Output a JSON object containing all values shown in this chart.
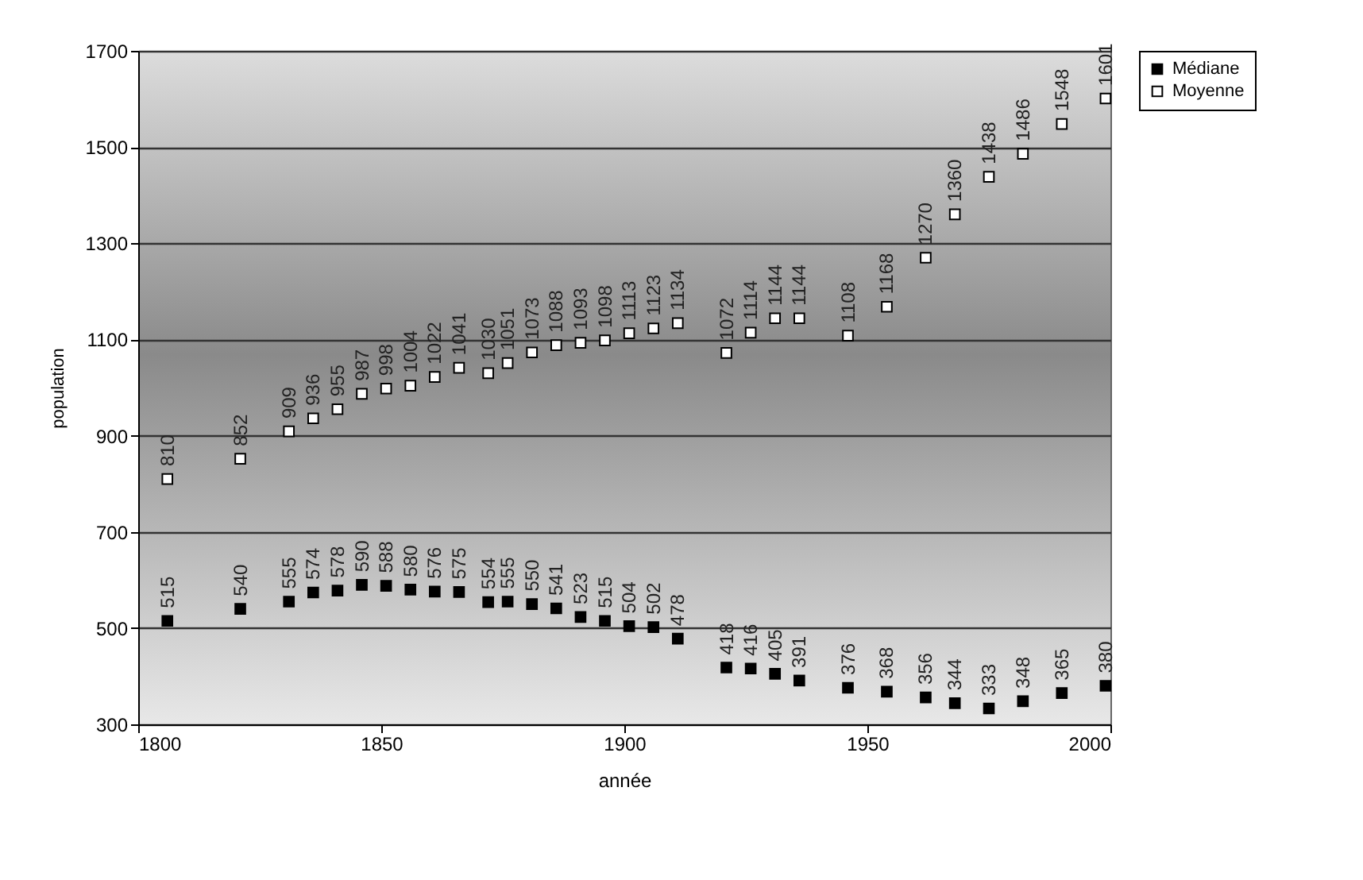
{
  "chart_data": {
    "type": "scatter",
    "xlabel": "année",
    "ylabel": "population",
    "x": [
      1806,
      1821,
      1831,
      1836,
      1841,
      1846,
      1851,
      1856,
      1861,
      1866,
      1872,
      1876,
      1881,
      1886,
      1891,
      1896,
      1901,
      1906,
      1911,
      1921,
      1926,
      1931,
      1936,
      1946,
      1954,
      1962,
      1968,
      1975,
      1982,
      1990,
      1999
    ],
    "series": [
      {
        "name": "Médiane",
        "color": "#000000",
        "values": [
          515,
          540,
          555,
          574,
          578,
          590,
          588,
          580,
          576,
          575,
          554,
          555,
          550,
          541,
          523,
          515,
          504,
          502,
          478,
          418,
          416,
          405,
          391,
          376,
          368,
          356,
          344,
          333,
          348,
          365,
          380
        ]
      },
      {
        "name": "Moyenne",
        "color": "#ffffff",
        "values": [
          810,
          852,
          909,
          936,
          955,
          987,
          998,
          1004,
          1022,
          1041,
          1030,
          1051,
          1073,
          1088,
          1093,
          1098,
          1113,
          1123,
          1134,
          1072,
          1114,
          1144,
          1144,
          1108,
          1168,
          1270,
          1360,
          1438,
          1486,
          1548,
          1601
        ]
      }
    ],
    "xlim": [
      1800,
      2000
    ],
    "xticks": [
      1800,
      1850,
      1900,
      1950,
      2000
    ],
    "ylim": [
      300,
      1700
    ],
    "yticks": [
      300,
      500,
      700,
      900,
      1100,
      1300,
      1500,
      1700
    ],
    "grid": "y",
    "legend": "right",
    "marker": "square",
    "data_labels": true
  }
}
